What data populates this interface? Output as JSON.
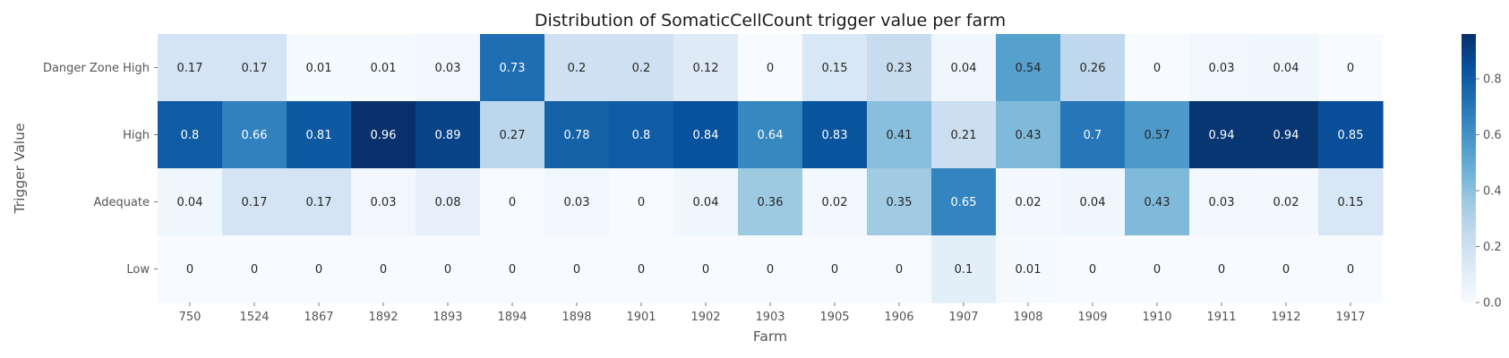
{
  "chart_data": {
    "type": "heatmap",
    "title": "Distribution of SomaticCellCount trigger value per farm",
    "xlabel": "Farm",
    "ylabel": "Trigger Value",
    "x": [
      "750",
      "1524",
      "1867",
      "1892",
      "1893",
      "1894",
      "1898",
      "1901",
      "1902",
      "1903",
      "1905",
      "1906",
      "1907",
      "1908",
      "1909",
      "1910",
      "1911",
      "1912",
      "1917"
    ],
    "y": [
      "Danger Zone High",
      "High",
      "Adequate",
      "Low"
    ],
    "values": [
      [
        0.17,
        0.17,
        0.01,
        0.01,
        0.03,
        0.73,
        0.2,
        0.2,
        0.12,
        0,
        0.15,
        0.23,
        0.04,
        0.54,
        0.26,
        0,
        0.03,
        0.04,
        0
      ],
      [
        0.8,
        0.66,
        0.81,
        0.96,
        0.89,
        0.27,
        0.78,
        0.8,
        0.84,
        0.64,
        0.83,
        0.41,
        0.21,
        0.43,
        0.7,
        0.57,
        0.94,
        0.94,
        0.85
      ],
      [
        0.04,
        0.17,
        0.17,
        0.03,
        0.08,
        0,
        0.03,
        0,
        0.04,
        0.36,
        0.02,
        0.35,
        0.65,
        0.02,
        0.04,
        0.43,
        0.03,
        0.02,
        0.15
      ],
      [
        0,
        0,
        0,
        0,
        0,
        0,
        0,
        0,
        0,
        0,
        0,
        0,
        0.1,
        0.01,
        0,
        0,
        0,
        0,
        0
      ]
    ],
    "value_range": [
      0,
      0.96
    ],
    "colormap": "Blues",
    "colorbar_ticks": [
      "0.0",
      "0.2",
      "0.4",
      "0.6",
      "0.8"
    ],
    "colorbar_tick_values": [
      0,
      0.2,
      0.4,
      0.6,
      0.8
    ]
  }
}
